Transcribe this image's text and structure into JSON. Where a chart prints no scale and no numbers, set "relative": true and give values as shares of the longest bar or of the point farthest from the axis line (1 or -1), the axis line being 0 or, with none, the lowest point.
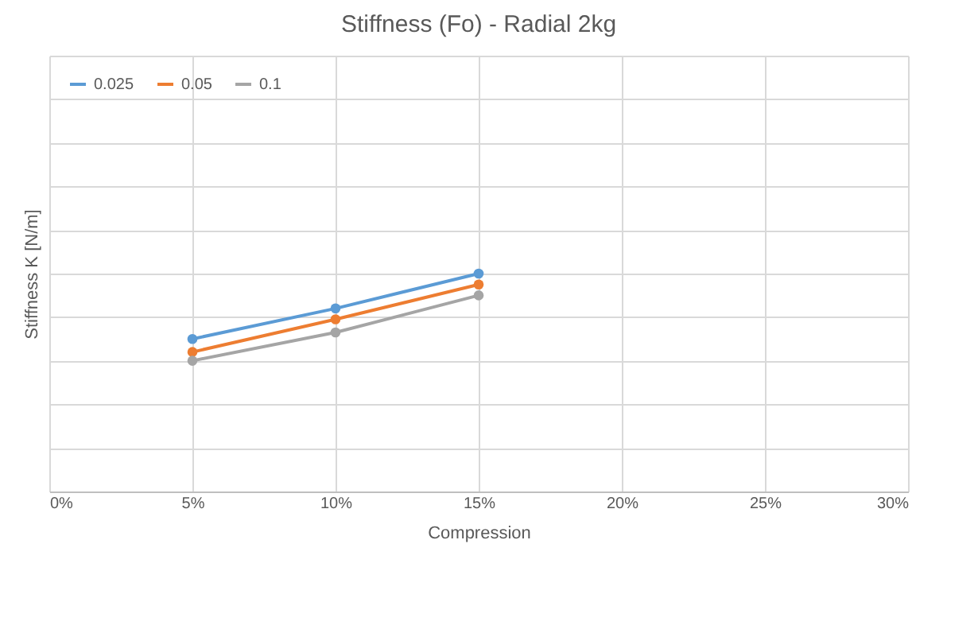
{
  "chart_data": {
    "type": "line",
    "title": "Stiffness  (Fo)  - Radial 2kg",
    "xlabel": "Compression",
    "ylabel": "Stiffness  K  [N/m]",
    "x": [
      5,
      10,
      15
    ],
    "xlim": [
      0,
      30
    ],
    "xticks": [
      {
        "value": 0,
        "label": "0%"
      },
      {
        "value": 5,
        "label": "5%"
      },
      {
        "value": 10,
        "label": "10%"
      },
      {
        "value": 15,
        "label": "15%"
      },
      {
        "value": 20,
        "label": "20%"
      },
      {
        "value": 25,
        "label": "25%"
      },
      {
        "value": 30,
        "label": "30%"
      }
    ],
    "relative": true,
    "grid": true,
    "legend": "top left",
    "marker": "circle",
    "line_style": "solid",
    "series": [
      {
        "name": "0.025",
        "color": "#5b9bd5",
        "values": [
          0.7,
          0.84,
          1
        ]
      },
      {
        "name": "0.05",
        "color": "#ed7d31",
        "values": [
          0.64,
          0.79,
          0.95
        ]
      },
      {
        "name": "0.1",
        "color": "#a5a5a5",
        "values": [
          0.6,
          0.73,
          0.9
        ]
      }
    ]
  }
}
